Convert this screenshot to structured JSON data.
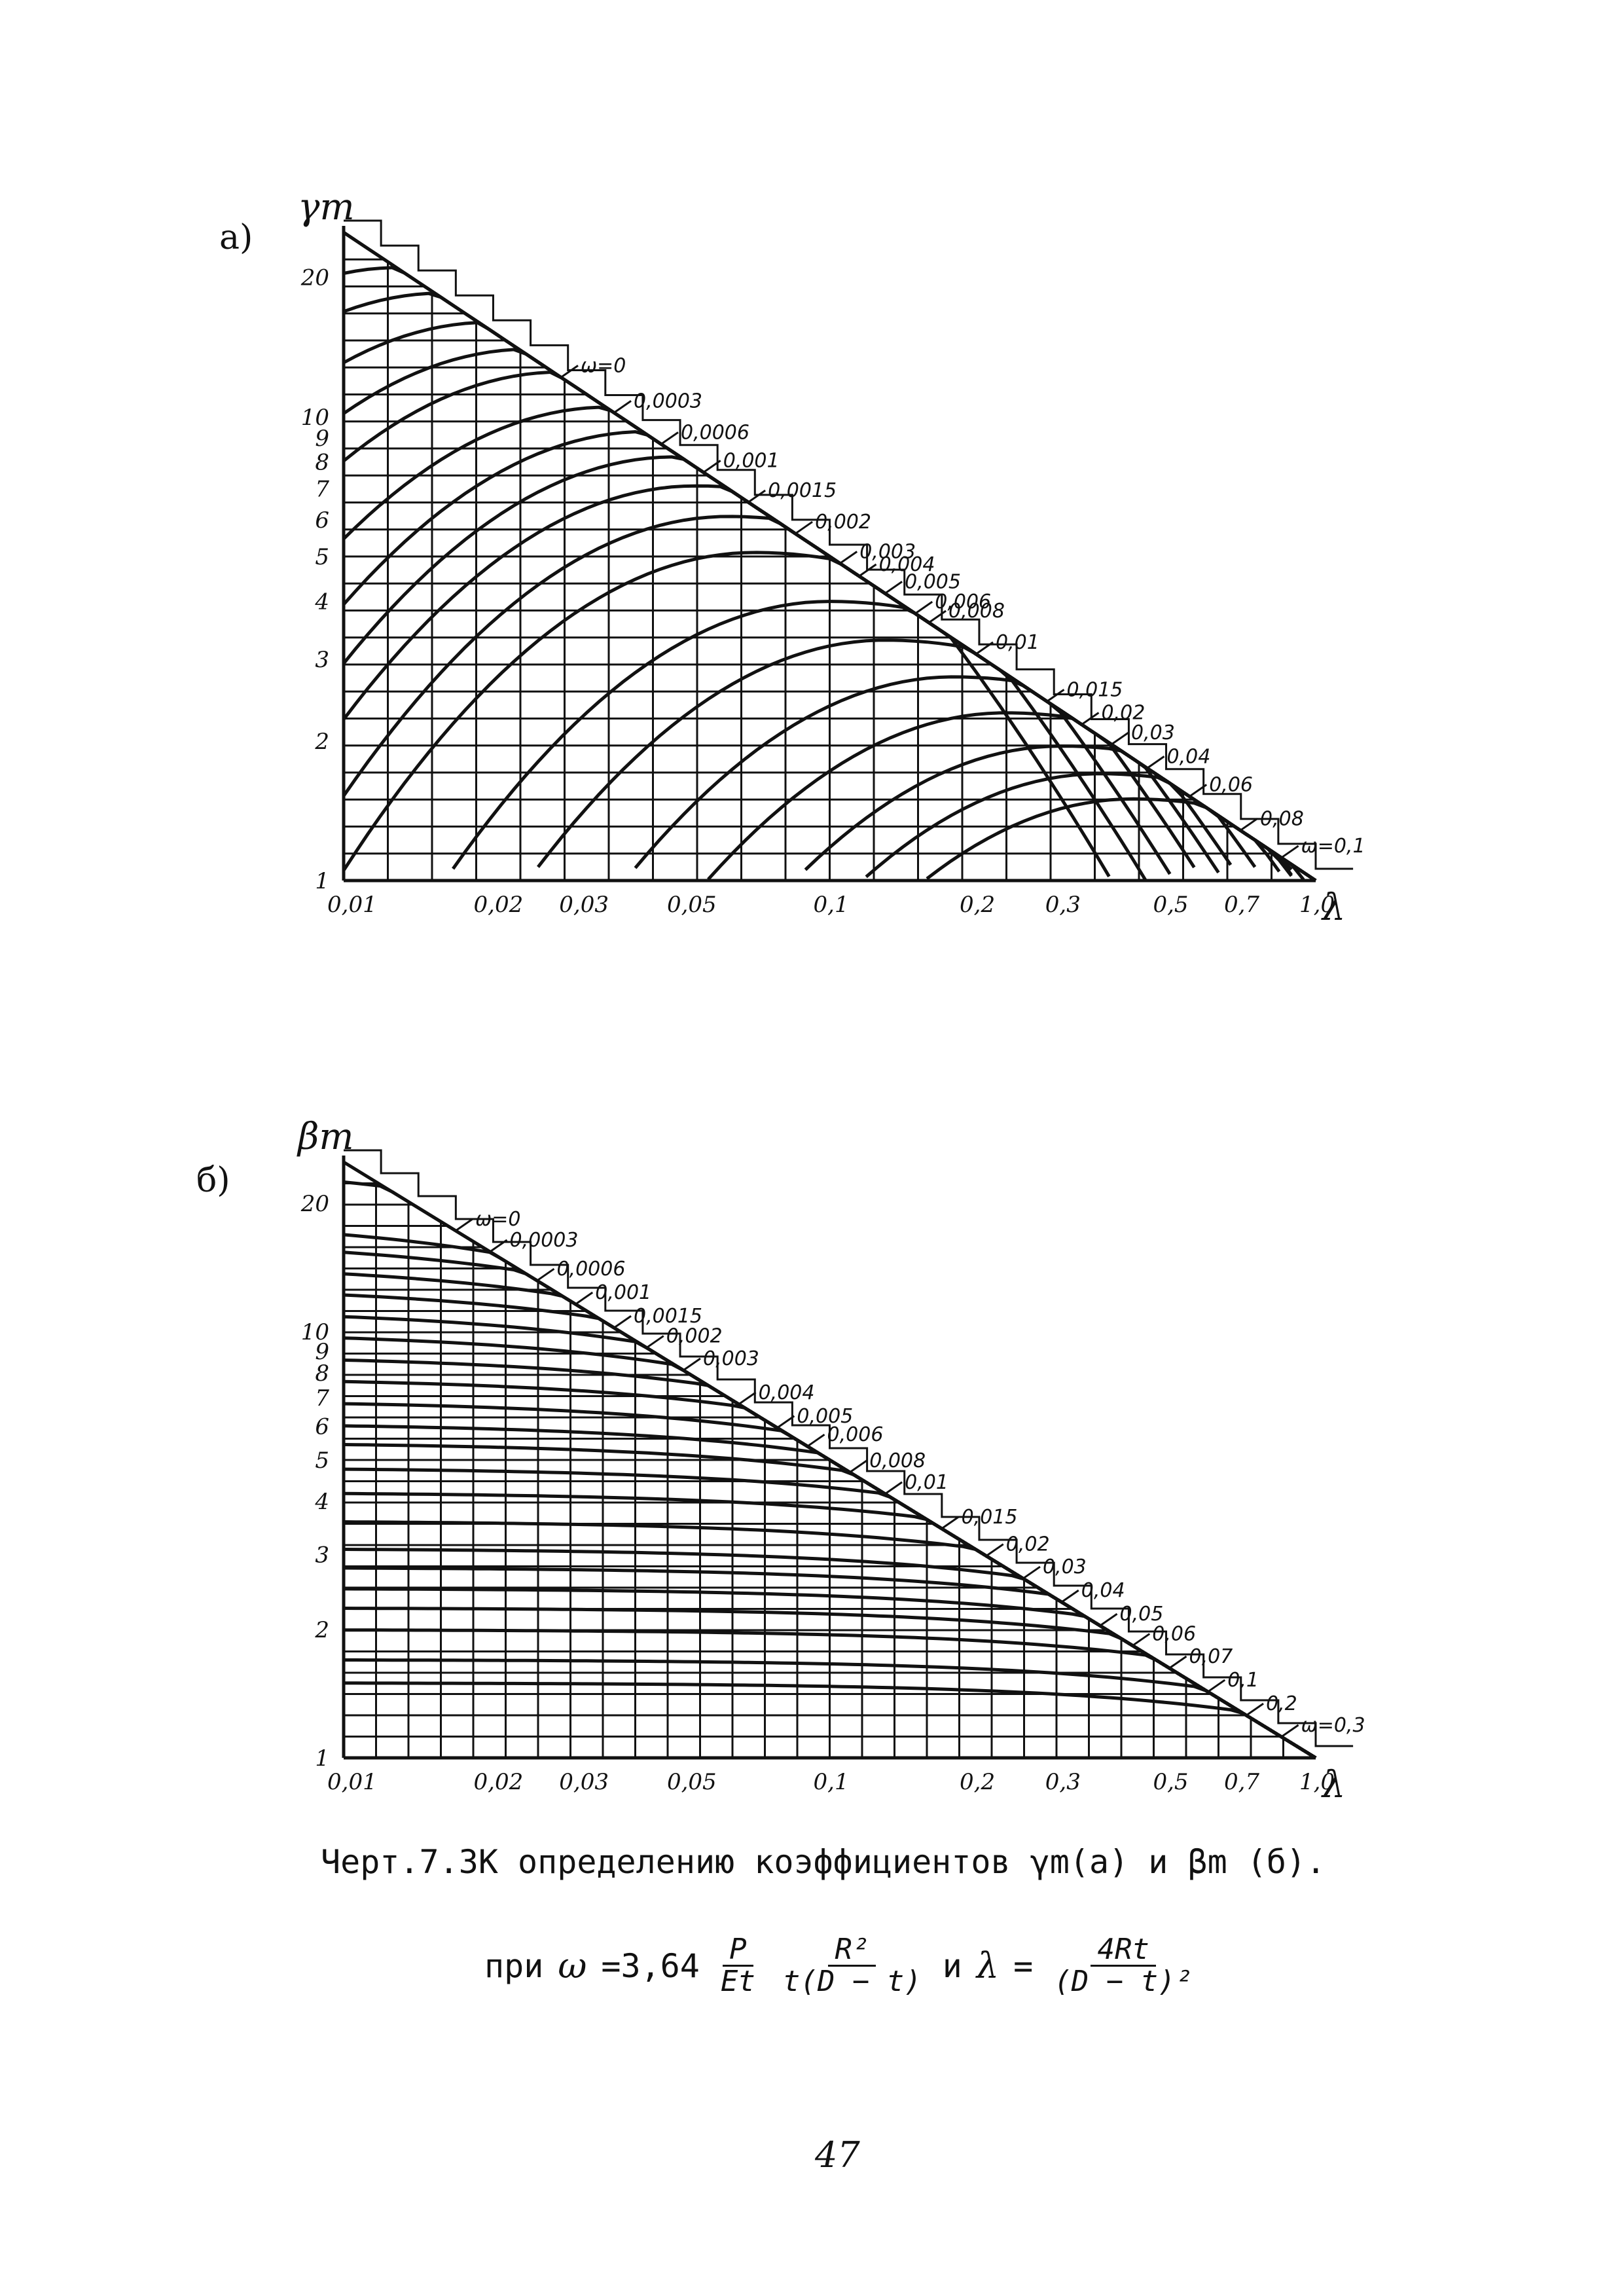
{
  "chart_data": [
    {
      "type": "line",
      "panel_label": "а)",
      "ylabel": "γm",
      "xlabel": "λ",
      "x_scale": "log",
      "y_scale": "log",
      "xlim": [
        0.01,
        1.0
      ],
      "ylim": [
        1,
        25
      ],
      "grid": true,
      "x_ticks": [
        {
          "value": 0.01,
          "label": "0,01"
        },
        {
          "value": 0.02,
          "label": "0,02"
        },
        {
          "value": 0.03,
          "label": "0,03"
        },
        {
          "value": 0.05,
          "label": "0,05"
        },
        {
          "value": 0.1,
          "label": "0,1"
        },
        {
          "value": 0.2,
          "label": "0,2"
        },
        {
          "value": 0.3,
          "label": "0,3"
        },
        {
          "value": 0.5,
          "label": "0,5"
        },
        {
          "value": 0.7,
          "label": "0,7"
        },
        {
          "value": 1.0,
          "label": "1,0"
        }
      ],
      "y_ticks": [
        {
          "value": 1,
          "label": "1"
        },
        {
          "value": 2,
          "label": "2"
        },
        {
          "value": 3,
          "label": "3"
        },
        {
          "value": 4,
          "label": "4"
        },
        {
          "value": 5,
          "label": "5"
        },
        {
          "value": 6,
          "label": "6"
        },
        {
          "value": 7,
          "label": "7"
        },
        {
          "value": 8,
          "label": "8"
        },
        {
          "value": 9,
          "label": "9"
        },
        {
          "value": 10,
          "label": "10"
        },
        {
          "value": 20,
          "label": "20"
        }
      ],
      "envelope": {
        "x": [
          0.01,
          1.0
        ],
        "y": [
          25,
          1
        ]
      },
      "series": [
        {
          "name": "ω=0",
          "omega": 0,
          "label_x": 0.028,
          "peak_x": 0.01,
          "peak_y": 25
        },
        {
          "name": "0,0003",
          "omega": 0.0003,
          "label_x": 0.036,
          "peak_x": 0.013,
          "peak_y": 21
        },
        {
          "name": "0,0006",
          "omega": 0.0006,
          "label_x": 0.045,
          "peak_x": 0.016,
          "peak_y": 18.5
        },
        {
          "name": "0,001",
          "omega": 0.001,
          "label_x": 0.055,
          "peak_x": 0.02,
          "peak_y": 16
        },
        {
          "name": "0,0015",
          "omega": 0.0015,
          "label_x": 0.068,
          "peak_x": 0.024,
          "peak_y": 14
        },
        {
          "name": "0,002",
          "omega": 0.002,
          "label_x": 0.085,
          "peak_x": 0.028,
          "peak_y": 12.5
        },
        {
          "name": "0,003",
          "omega": 0.003,
          "label_x": 0.105,
          "peak_x": 0.035,
          "peak_y": 10.5
        },
        {
          "name": "0,004",
          "omega": 0.004,
          "label_x": 0.115,
          "peak_x": 0.042,
          "peak_y": 9.3
        },
        {
          "name": "0,005",
          "omega": 0.005,
          "label_x": 0.13,
          "peak_x": 0.048,
          "peak_y": 8.2
        },
        {
          "name": "0,006",
          "omega": 0.006,
          "label_x": 0.15,
          "peak_x": 0.053,
          "peak_y": 7.1
        },
        {
          "name": "0,008",
          "omega": 0.008,
          "label_x": 0.16,
          "peak_x": 0.062,
          "peak_y": 6.1
        },
        {
          "name": "0,01",
          "omega": 0.01,
          "label_x": 0.2,
          "peak_x": 0.07,
          "peak_y": 5.1
        },
        {
          "name": "0,015",
          "omega": 0.015,
          "label_x": 0.28,
          "peak_x": 0.1,
          "peak_y": 4.0
        },
        {
          "name": "0,02",
          "omega": 0.02,
          "label_x": 0.33,
          "peak_x": 0.13,
          "peak_y": 3.3
        },
        {
          "name": "0,03",
          "omega": 0.03,
          "label_x": 0.38,
          "peak_x": 0.18,
          "peak_y": 2.75
        },
        {
          "name": "0,04",
          "omega": 0.04,
          "label_x": 0.45,
          "peak_x": 0.23,
          "peak_y": 2.3
        },
        {
          "name": "0,06",
          "omega": 0.06,
          "label_x": 0.55,
          "peak_x": 0.3,
          "peak_y": 1.95
        },
        {
          "name": "0,08",
          "omega": 0.08,
          "label_x": 0.7,
          "peak_x": 0.36,
          "peak_y": 1.7
        },
        {
          "name": "ω=0,1",
          "omega": 0.1,
          "label_x": 0.85,
          "peak_x": 0.42,
          "peak_y": 1.5
        }
      ]
    },
    {
      "type": "line",
      "panel_label": "б)",
      "ylabel": "βm",
      "xlabel": "λ",
      "x_scale": "log",
      "y_scale": "log",
      "xlim": [
        0.01,
        1.0
      ],
      "ylim": [
        1,
        25
      ],
      "grid": true,
      "x_ticks": [
        {
          "value": 0.01,
          "label": "0,01"
        },
        {
          "value": 0.02,
          "label": "0,02"
        },
        {
          "value": 0.03,
          "label": "0,03"
        },
        {
          "value": 0.05,
          "label": "0,05"
        },
        {
          "value": 0.1,
          "label": "0,1"
        },
        {
          "value": 0.2,
          "label": "0,2"
        },
        {
          "value": 0.3,
          "label": "0,3"
        },
        {
          "value": 0.5,
          "label": "0,5"
        },
        {
          "value": 0.7,
          "label": "0,7"
        },
        {
          "value": 1.0,
          "label": "1,0"
        }
      ],
      "y_ticks": [
        {
          "value": 1,
          "label": "1"
        },
        {
          "value": 2,
          "label": "2"
        },
        {
          "value": 3,
          "label": "3"
        },
        {
          "value": 4,
          "label": "4"
        },
        {
          "value": 5,
          "label": "5"
        },
        {
          "value": 6,
          "label": "6"
        },
        {
          "value": 7,
          "label": "7"
        },
        {
          "value": 8,
          "label": "8"
        },
        {
          "value": 9,
          "label": "9"
        },
        {
          "value": 10,
          "label": "10"
        },
        {
          "value": 20,
          "label": "20"
        }
      ],
      "envelope": {
        "x": [
          0.01,
          1.0
        ],
        "y": [
          25,
          1
        ]
      },
      "series": [
        {
          "name": "ω=0",
          "omega": 0,
          "label_x": 0.017,
          "y0": 25
        },
        {
          "name": "0,0003",
          "omega": 0.0003,
          "label_x": 0.02,
          "y0": 18.5
        },
        {
          "name": "0,0006",
          "omega": 0.0006,
          "label_x": 0.025,
          "y0": 16.5
        },
        {
          "name": "0,001",
          "omega": 0.001,
          "label_x": 0.03,
          "y0": 14.5
        },
        {
          "name": "0,0015",
          "omega": 0.0015,
          "label_x": 0.036,
          "y0": 12.8
        },
        {
          "name": "0,002",
          "omega": 0.002,
          "label_x": 0.042,
          "y0": 11.3
        },
        {
          "name": "0,003",
          "omega": 0.003,
          "label_x": 0.05,
          "y0": 10.0
        },
        {
          "name": "0,004",
          "omega": 0.004,
          "label_x": 0.065,
          "y0": 8.8
        },
        {
          "name": "0,005",
          "omega": 0.005,
          "label_x": 0.078,
          "y0": 7.8
        },
        {
          "name": "0,006",
          "omega": 0.006,
          "label_x": 0.09,
          "y0": 6.9
        },
        {
          "name": "0,008",
          "omega": 0.008,
          "label_x": 0.11,
          "y0": 6.1
        },
        {
          "name": "0,01",
          "omega": 0.01,
          "label_x": 0.13,
          "y0": 5.5
        },
        {
          "name": "0,015",
          "omega": 0.015,
          "label_x": 0.17,
          "y0": 4.8
        },
        {
          "name": "0,02",
          "omega": 0.02,
          "label_x": 0.21,
          "y0": 4.2
        },
        {
          "name": "0,03",
          "omega": 0.03,
          "label_x": 0.25,
          "y0": 3.6
        },
        {
          "name": "0,04",
          "omega": 0.04,
          "label_x": 0.3,
          "y0": 3.1
        },
        {
          "name": "0,05",
          "omega": 0.05,
          "label_x": 0.36,
          "y0": 2.8
        },
        {
          "name": "0,06",
          "omega": 0.06,
          "label_x": 0.42,
          "y0": 2.5
        },
        {
          "name": "0,07",
          "omega": 0.07,
          "label_x": 0.5,
          "y0": 2.25
        },
        {
          "name": "0,1",
          "omega": 0.1,
          "label_x": 0.6,
          "y0": 2.0
        },
        {
          "name": "0,2",
          "omega": 0.2,
          "label_x": 0.72,
          "y0": 1.7
        },
        {
          "name": "ω=0,3",
          "omega": 0.3,
          "label_x": 0.85,
          "y0": 1.5
        }
      ]
    }
  ],
  "caption": {
    "text": "Черт.7.3К определению коэффициентов γm(а) и βm (б)."
  },
  "formula": {
    "prefix": "при",
    "omega_symbol": "ω",
    "omega_coeff": "=3,64",
    "frac1_num": "P",
    "frac1_den": "Et",
    "frac2_num": "R²",
    "frac2_den": "t(D − t)",
    "conj": "и",
    "lambda_symbol": "λ",
    "equals": "=",
    "frac3_num": "4Rt",
    "frac3_den": "(D − t)²"
  },
  "page": {
    "number": "47"
  }
}
